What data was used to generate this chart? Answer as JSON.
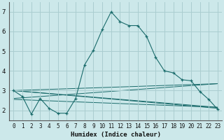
{
  "xlabel": "Humidex (Indice chaleur)",
  "xlim": [
    -0.5,
    23.5
  ],
  "ylim": [
    1.5,
    7.5
  ],
  "yticks": [
    2,
    3,
    4,
    5,
    6,
    7
  ],
  "xticks": [
    0,
    1,
    2,
    3,
    4,
    5,
    6,
    7,
    8,
    9,
    10,
    11,
    12,
    13,
    14,
    15,
    16,
    17,
    18,
    19,
    20,
    21,
    22,
    23
  ],
  "bg_color": "#cce8ea",
  "grid_color": "#aacdd0",
  "line_color": "#1a6b6b",
  "main_line": {
    "x": [
      0,
      1,
      2,
      3,
      4,
      5,
      6,
      7,
      8,
      9,
      10,
      11,
      12,
      13,
      14,
      15,
      16,
      17,
      18,
      19,
      20,
      21,
      22,
      23
    ],
    "y": [
      3.0,
      2.7,
      1.8,
      2.6,
      2.1,
      1.85,
      1.85,
      2.6,
      4.3,
      5.05,
      6.1,
      7.0,
      6.5,
      6.3,
      6.3,
      5.75,
      4.7,
      4.0,
      3.9,
      3.55,
      3.5,
      2.95,
      2.55,
      2.05
    ]
  },
  "trend_lines": [
    {
      "x": [
        0,
        23
      ],
      "y": [
        3.0,
        2.1
      ]
    },
    {
      "x": [
        0,
        23
      ],
      "y": [
        3.0,
        3.35
      ]
    },
    {
      "x": [
        0,
        23
      ],
      "y": [
        3.0,
        2.15
      ]
    },
    {
      "x": [
        0,
        23
      ],
      "y": [
        2.6,
        3.35
      ]
    },
    {
      "x": [
        0,
        23
      ],
      "y": [
        2.55,
        2.15
      ]
    }
  ]
}
